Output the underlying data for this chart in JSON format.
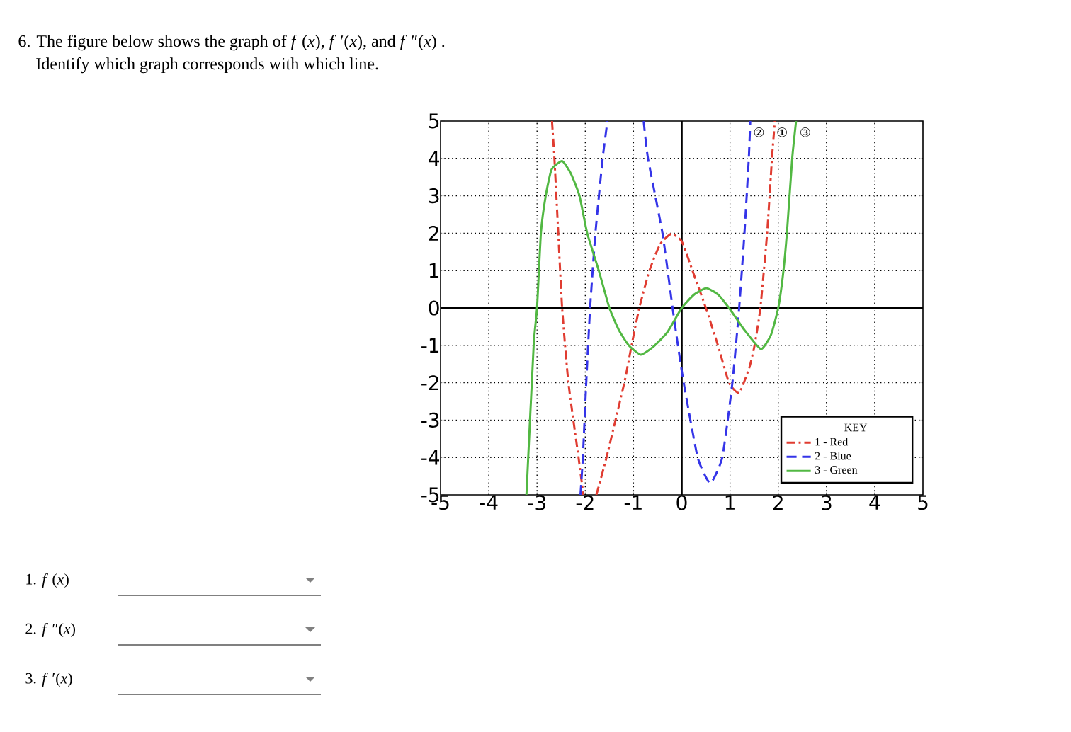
{
  "chart_data": {
    "type": "line",
    "title": "6. The figure below shows the graph of *f* (*x*), *f* ′(*x*), and *f* ″(*x*) .",
    "subtitle": "Identify which graph corresponds with which line.",
    "legend_title": "KEY",
    "xlim": [
      -5,
      5
    ],
    "ylim": [
      -5,
      5
    ],
    "xticks": [
      -5,
      -4,
      -3,
      -2,
      -1,
      0,
      1,
      2,
      3,
      4,
      5
    ],
    "yticks": [
      -5,
      -4,
      -3,
      -2,
      -1,
      0,
      1,
      2,
      3,
      4,
      5
    ],
    "grid": true,
    "legend": "bottom right",
    "marker": "none",
    "series": [
      {
        "name": "1 - Red",
        "color": "#e03c31",
        "line_style": "dashdot",
        "x": [
          -2.69,
          -2.64,
          -2.56,
          -2.48,
          -2.35,
          -2.14,
          -2.04,
          null,
          -1.77,
          -1.56,
          -1.19,
          -1.04,
          -0.88,
          -0.67,
          -0.45,
          -0.22,
          0,
          0.25,
          0.5,
          0.75,
          0.98,
          1.19,
          1.4,
          1.51,
          1.63,
          1.77,
          1.87,
          1.93
        ],
        "values": [
          5,
          4,
          2,
          0,
          -2,
          -4,
          -5,
          null,
          -5,
          -4,
          -2,
          -1,
          0,
          1,
          1.7,
          1.98,
          1.78,
          0.9,
          0,
          -1,
          -2,
          -2.27,
          -1.6,
          -1,
          0,
          2,
          4,
          5
        ]
      },
      {
        "name": "2 - Blue",
        "color": "#3434e8",
        "line_style": "dashed",
        "x": [
          -2.1,
          -2.05,
          -1.98,
          -1.9,
          -1.79,
          -1.64,
          -1.54,
          null,
          -0.79,
          -0.7,
          -0.4,
          -0.19,
          -0.08,
          0.04,
          0.33,
          0.59,
          0.84,
          1.05,
          1.19,
          1.3,
          1.39,
          1.42
        ],
        "values": [
          -5,
          -4,
          -2,
          0,
          2,
          4,
          5,
          null,
          5,
          4,
          2,
          0,
          -1,
          -2,
          -4,
          -4.69,
          -4,
          -2,
          0,
          2,
          4,
          5
        ]
      },
      {
        "name": "3 - Green",
        "color": "#52b843",
        "line_style": "solid",
        "x": [
          -3.22,
          -3.07,
          -3.0,
          -2.92,
          -2.82,
          -2.7,
          -2.48,
          -2.3,
          -2.12,
          -1.96,
          -1.72,
          -1.5,
          -1.3,
          -1.1,
          -0.85,
          -0.6,
          -0.3,
          0,
          0.25,
          0.51,
          0.75,
          0.98,
          1.3,
          1.64,
          1.85,
          2.0,
          2.1,
          2.18,
          2.29,
          2.37
        ],
        "values": [
          -5,
          -1,
          0,
          2,
          3,
          3.7,
          3.93,
          3.6,
          3,
          2,
          1,
          0,
          -0.6,
          -1,
          -1.25,
          -1.05,
          -0.65,
          0,
          0.35,
          0.53,
          0.36,
          0,
          -0.59,
          -1.1,
          -0.72,
          0,
          0.9,
          2,
          4,
          5
        ]
      }
    ],
    "annotations": [
      "②",
      "①",
      "③",
      "1. *f* (*x*)",
      "2. *f* ″(*x*)",
      "3. *f* ′(*x*)"
    ]
  }
}
